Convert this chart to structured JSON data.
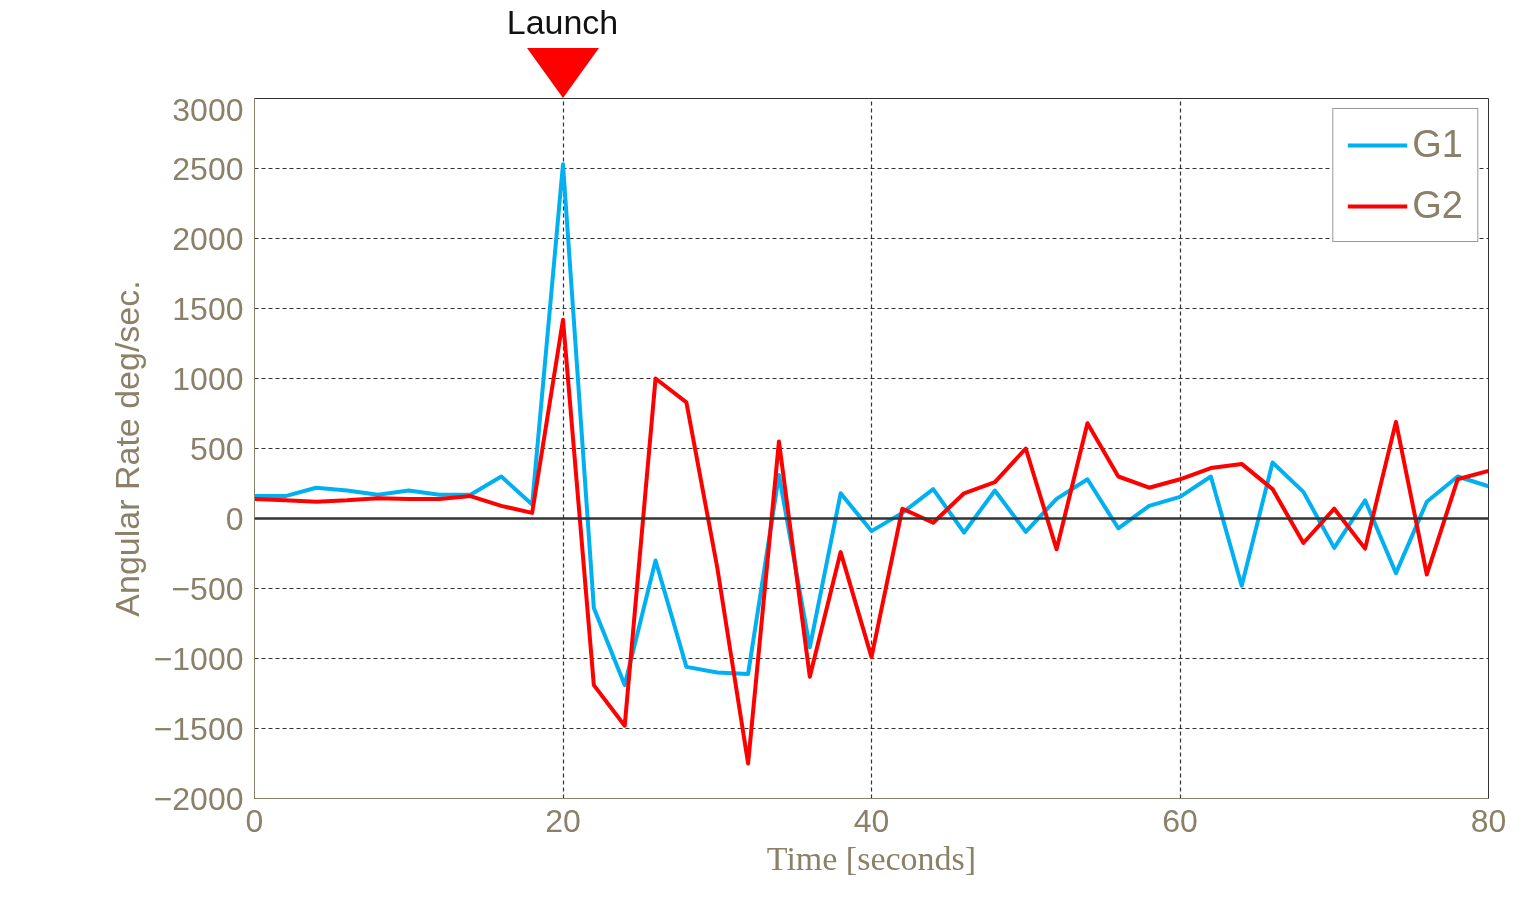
{
  "chart_data": {
    "type": "line",
    "xlabel": "Time [seconds]",
    "ylabel": "Angular Rate deg/sec.",
    "x": [
      0,
      2,
      4,
      6,
      8,
      10,
      12,
      14,
      16,
      18,
      20,
      22,
      24,
      26,
      28,
      30,
      32,
      34,
      36,
      38,
      40,
      42,
      44,
      46,
      48,
      50,
      52,
      54,
      56,
      58,
      60,
      62,
      64,
      66,
      68,
      70,
      72,
      74,
      76,
      78,
      80
    ],
    "series": [
      {
        "name": "G1",
        "color": "#00b0f0",
        "values": [
          160,
          160,
          220,
          200,
          170,
          200,
          170,
          170,
          300,
          100,
          2530,
          -640,
          -1190,
          -300,
          -1060,
          -1100,
          -1110,
          310,
          -920,
          180,
          -90,
          40,
          210,
          -100,
          200,
          -95,
          140,
          280,
          -70,
          90,
          155,
          300,
          -480,
          400,
          190,
          -210,
          130,
          -390,
          120,
          300,
          230
        ]
      },
      {
        "name": "G2",
        "color": "#ff0000",
        "values": [
          140,
          130,
          120,
          130,
          145,
          140,
          140,
          160,
          90,
          40,
          1420,
          -1190,
          -1480,
          1000,
          830,
          -350,
          -1750,
          550,
          -1130,
          -240,
          -990,
          70,
          -30,
          180,
          260,
          500,
          -220,
          680,
          300,
          220,
          280,
          360,
          390,
          210,
          -175,
          70,
          -215,
          690,
          -400,
          280,
          340
        ]
      }
    ],
    "xlim": [
      0,
      80
    ],
    "xticks": [
      0,
      20,
      40,
      60,
      80
    ],
    "ylim": [
      -2000,
      3000
    ],
    "yticks": [
      -2000,
      -1500,
      -1000,
      -500,
      0,
      500,
      1000,
      1500,
      2000,
      2500,
      3000
    ],
    "ref_lines": [
      {
        "axis": "y",
        "value": 0,
        "color": "#333333",
        "line_style": "solid"
      }
    ],
    "annotations": [
      "Launch"
    ],
    "grid": true,
    "legend": "top right",
    "line_style": "solid",
    "marker": "none"
  }
}
